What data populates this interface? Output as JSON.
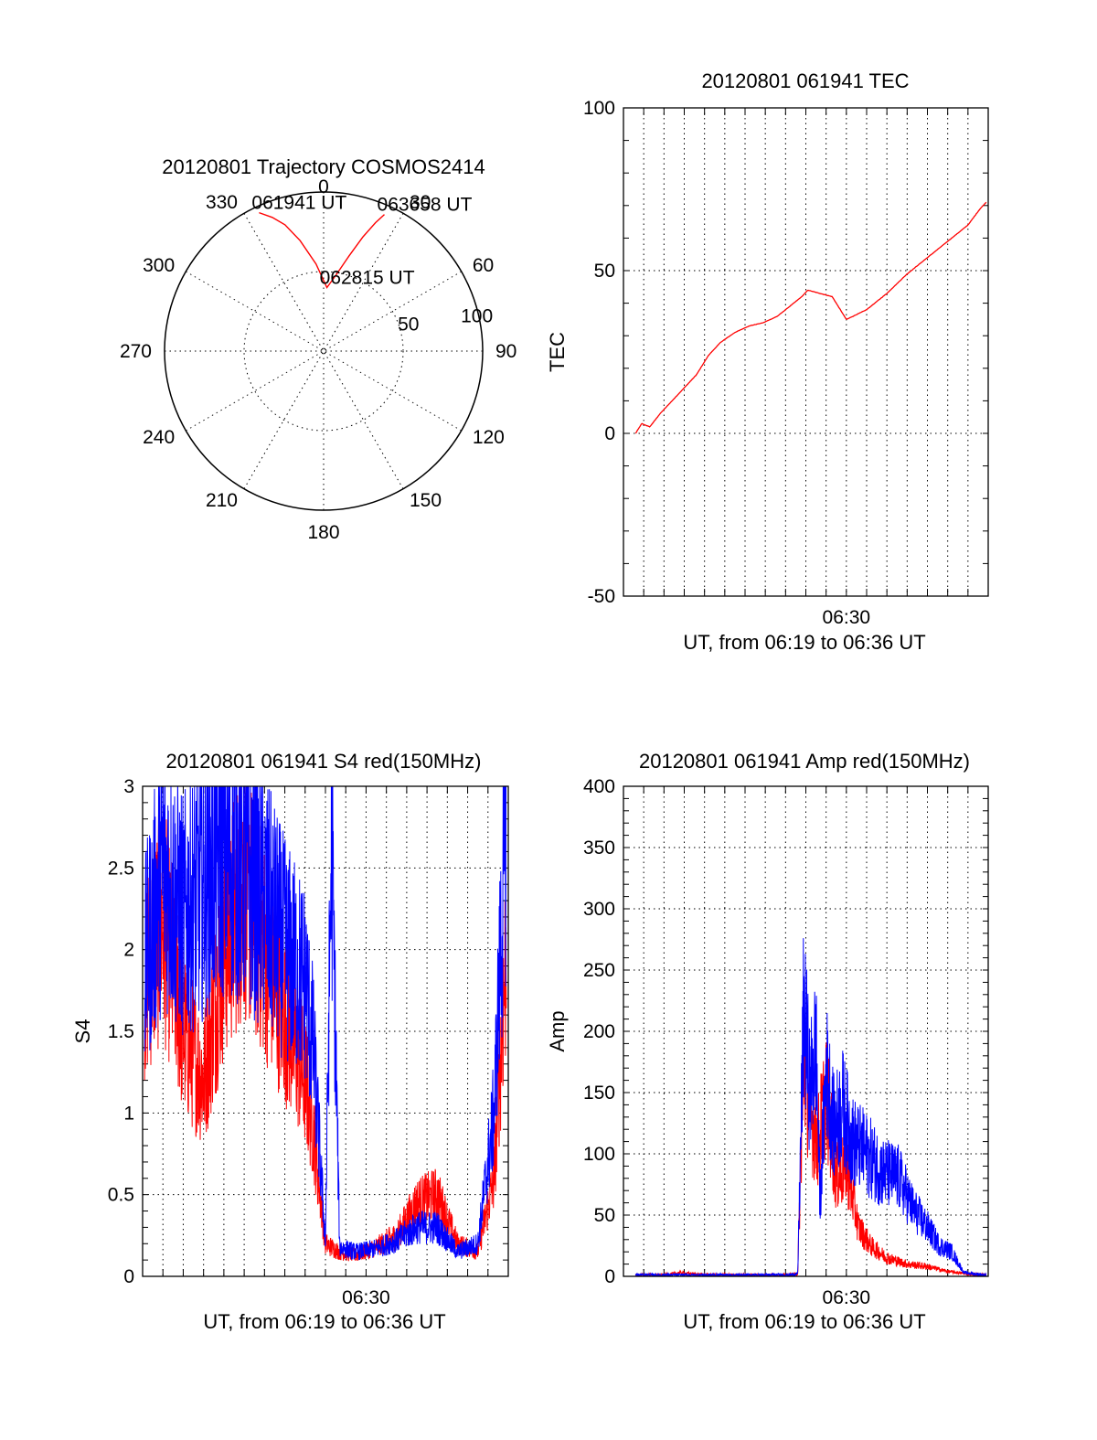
{
  "colors": {
    "red_series": "#ff0000",
    "blue_series": "#0000ff",
    "axes": "#000000",
    "background": "#ffffff"
  },
  "chart_data": [
    {
      "id": "polar",
      "type": "scatter",
      "title": "20120801 Trajectory COSMOS2414",
      "coordinate_system": "polar (azimuth degrees clockwise from north, radius = 90 - elevation)",
      "angle_labels": [
        "0",
        "30",
        "60",
        "90",
        "120",
        "150",
        "180",
        "210",
        "240",
        "270",
        "300",
        "330"
      ],
      "radial_labels": [
        "50",
        "100"
      ],
      "radial_label_values": [
        50,
        100
      ],
      "rlim": [
        0,
        100
      ],
      "series": [
        {
          "color": "#ff0000",
          "azimuth": [
            -25,
            -21,
            -17,
            -12,
            -5,
            3,
            9,
            15,
            19,
            22,
            24
          ],
          "radius": [
            96,
            90,
            83,
            71,
            55,
            40,
            48,
            62,
            76,
            87,
            94
          ]
        }
      ],
      "annotations": [
        {
          "text": "061941 UT",
          "azimuth": -25,
          "radius": 96
        },
        {
          "text": "062815 UT",
          "azimuth": 3,
          "radius": 40
        },
        {
          "text": "063658 UT",
          "azimuth": 24,
          "radius": 94
        }
      ],
      "grid": true
    },
    {
      "id": "tec",
      "type": "line",
      "title": "20120801 061941 TEC",
      "xlabel": "UT, from 06:19 to 06:36 UT",
      "ylabel": "TEC",
      "xlim": [
        1159,
        1177
      ],
      "ylim": [
        -50,
        100
      ],
      "y_ticks": [
        "100",
        "50",
        "0",
        "-50"
      ],
      "y_tick_values": [
        100,
        50,
        0,
        -50
      ],
      "x_tick_labels": [
        "06:30"
      ],
      "x_tick_values": [
        1170
      ],
      "grid": true,
      "series": [
        {
          "color": "#ff0000",
          "x": [
            1159.6,
            1159.9,
            1160.3,
            1160.8,
            1161.4,
            1162,
            1162.6,
            1163.2,
            1163.8,
            1164.5,
            1165.2,
            1165.9,
            1166.6,
            1167.2,
            1167.8,
            1168.1,
            1168.7,
            1169.3,
            1170,
            1171,
            1172,
            1173,
            1174,
            1175,
            1176,
            1176.6,
            1176.9
          ],
          "y": [
            0,
            3,
            2,
            6,
            10,
            14,
            18,
            24,
            28,
            31,
            33,
            34,
            36,
            39,
            42,
            44,
            43,
            42,
            35,
            38,
            43,
            49,
            54,
            59,
            64,
            69,
            71
          ]
        }
      ]
    },
    {
      "id": "s4",
      "type": "line",
      "title": "20120801 061941 S4 red(150MHz)",
      "xlabel": "UT, from 06:19 to 06:36 UT",
      "ylabel": "S4",
      "xlim": [
        1159,
        1177
      ],
      "ylim": [
        0,
        3
      ],
      "y_ticks": [
        "3",
        "2.5",
        "2",
        "1.5",
        "1",
        "0.5",
        "0"
      ],
      "y_tick_values": [
        3,
        2.5,
        2,
        1.5,
        1,
        0.5,
        0
      ],
      "x_tick_labels": [
        "06:30"
      ],
      "x_tick_values": [
        1170
      ],
      "grid": true,
      "series": [
        {
          "color": "#ff0000",
          "x": [
            1159.1,
            1160,
            1161,
            1162,
            1163,
            1164,
            1165,
            1166,
            1167,
            1167.4,
            1168,
            1168.7,
            1169.5,
            1170.5,
            1171.5,
            1172.5,
            1173.5,
            1174.5,
            1175.5,
            1176.3,
            1176.9
          ],
          "y": [
            1.8,
            2.2,
            1.5,
            1.2,
            2.0,
            2.4,
            2.0,
            1.6,
            1.2,
            0.9,
            0.2,
            0.15,
            0.13,
            0.18,
            0.25,
            0.45,
            0.5,
            0.2,
            0.15,
            0.6,
            2.0
          ]
        },
        {
          "color": "#0000ff",
          "x": [
            1159.1,
            1160,
            1161,
            1162,
            1163,
            1164,
            1165,
            1166,
            1167,
            1167.4,
            1168,
            1168.3,
            1168.7,
            1169.5,
            1170.5,
            1171.5,
            1172.5,
            1173.5,
            1174.5,
            1175.5,
            1176.3,
            1176.9
          ],
          "y": [
            1.9,
            2.5,
            2.2,
            2.4,
            2.6,
            2.5,
            2.3,
            2.0,
            1.8,
            1.4,
            0.2,
            2.7,
            0.18,
            0.15,
            0.17,
            0.22,
            0.3,
            0.3,
            0.15,
            0.2,
            1.0,
            2.8
          ]
        }
      ]
    },
    {
      "id": "amp",
      "type": "line",
      "title": "20120801 061941 Amp red(150MHz)",
      "xlabel": "UT, from 06:19 to 06:36 UT",
      "ylabel": "Amp",
      "xlim": [
        1159,
        1177
      ],
      "ylim": [
        0,
        400
      ],
      "y_ticks": [
        "400",
        "350",
        "300",
        "250",
        "200",
        "150",
        "100",
        "50",
        "0"
      ],
      "y_tick_values": [
        400,
        350,
        300,
        250,
        200,
        150,
        100,
        50,
        0
      ],
      "x_tick_labels": [
        "06:30"
      ],
      "x_tick_values": [
        1170
      ],
      "grid": true,
      "series": [
        {
          "color": "#ff0000",
          "x": [
            1159.6,
            1161,
            1161.8,
            1163,
            1165,
            1167,
            1167.6,
            1167.9,
            1168.2,
            1168.6,
            1169,
            1169.5,
            1170,
            1170.6,
            1171.2,
            1172,
            1173,
            1174,
            1175,
            1176,
            1176.9
          ],
          "y": [
            1,
            1,
            3,
            1,
            1,
            1,
            2,
            180,
            130,
            110,
            150,
            80,
            90,
            40,
            25,
            15,
            10,
            8,
            4,
            2,
            1
          ]
        },
        {
          "color": "#0000ff",
          "x": [
            1159.6,
            1162,
            1165,
            1167,
            1167.6,
            1167.9,
            1168.2,
            1168.5,
            1168.7,
            1169,
            1169.4,
            1169.8,
            1170.3,
            1171,
            1171.8,
            1172.6,
            1173.3,
            1174,
            1174.6,
            1175.2,
            1175.8,
            1176.9
          ],
          "y": [
            1,
            1,
            1,
            1,
            2,
            220,
            150,
            190,
            60,
            170,
            120,
            140,
            110,
            100,
            85,
            80,
            55,
            40,
            25,
            20,
            3,
            1
          ]
        }
      ]
    }
  ]
}
